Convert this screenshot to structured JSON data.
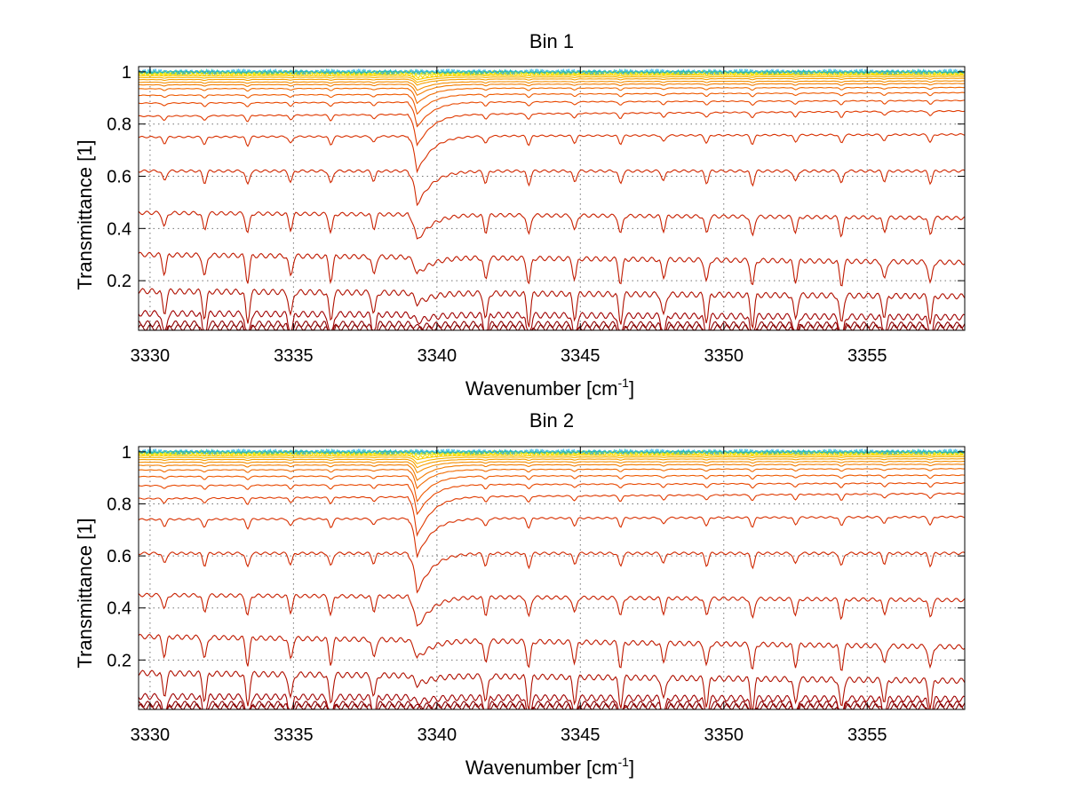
{
  "chart_data": [
    {
      "type": "line",
      "title": "Bin 1",
      "xlabel": "Wavenumber [cm",
      "xlabel_sup": "-1",
      "xlabel_close": "]",
      "ylabel": "Transmittance [1]",
      "xlim": [
        3329.6,
        3358.4
      ],
      "ylim": [
        0.01,
        1.02
      ],
      "x_ticks": [
        3330,
        3335,
        3340,
        3345,
        3350,
        3355
      ],
      "x_tick_labels": [
        "3330",
        "3335",
        "3340",
        "3345",
        "3350",
        "3355"
      ],
      "y_ticks": [
        0.2,
        0.4,
        0.6,
        0.8,
        1
      ],
      "y_tick_labels": [
        "0.2",
        "0.4",
        "0.6",
        "0.8",
        "1"
      ],
      "grid": true,
      "series_baselines": [
        0.02,
        0.035,
        0.075,
        0.16,
        0.3,
        0.46,
        0.62,
        0.75,
        0.83,
        0.88,
        0.91,
        0.935,
        0.95,
        0.96,
        0.97,
        0.978,
        0.985,
        0.99,
        0.995,
        0.998
      ],
      "series_end_values": [
        0.02,
        0.03,
        0.06,
        0.14,
        0.27,
        0.44,
        0.62,
        0.76,
        0.85,
        0.89,
        0.92,
        0.94,
        0.955,
        0.965,
        0.975,
        0.982,
        0.988,
        0.992,
        0.996,
        0.998
      ],
      "main_dip": {
        "x": 3339.3,
        "min_values": [
          0.012,
          0.02,
          0.04,
          0.11,
          0.22,
          0.35,
          0.49,
          0.62,
          0.72,
          0.79,
          0.84,
          0.88,
          0.91,
          0.93,
          0.95,
          0.96,
          0.97,
          0.98,
          0.99,
          0.995
        ]
      },
      "minor_dip_positions": [
        3330.5,
        3331.9,
        3333.4,
        3334.9,
        3336.3,
        3337.8,
        3341.7,
        3343.2,
        3344.8,
        3346.4,
        3347.9,
        3349.4,
        3351.0,
        3352.5,
        3354.1,
        3355.6,
        3357.2
      ]
    },
    {
      "type": "line",
      "title": "Bin 2",
      "xlabel": "Wavenumber [cm",
      "xlabel_sup": "-1",
      "xlabel_close": "]",
      "ylabel": "Transmittance [1]",
      "xlim": [
        3329.6,
        3358.4
      ],
      "ylim": [
        0.01,
        1.02
      ],
      "x_ticks": [
        3330,
        3335,
        3340,
        3345,
        3350,
        3355
      ],
      "x_tick_labels": [
        "3330",
        "3335",
        "3340",
        "3345",
        "3350",
        "3355"
      ],
      "y_ticks": [
        0.2,
        0.4,
        0.6,
        0.8,
        1
      ],
      "y_tick_labels": [
        "0.2",
        "0.4",
        "0.6",
        "0.8",
        "1"
      ],
      "grid": true,
      "series_baselines": [
        0.02,
        0.03,
        0.06,
        0.15,
        0.29,
        0.45,
        0.61,
        0.74,
        0.82,
        0.87,
        0.905,
        0.93,
        0.948,
        0.96,
        0.97,
        0.978,
        0.985,
        0.99,
        0.995,
        0.998
      ],
      "series_end_values": [
        0.02,
        0.03,
        0.05,
        0.12,
        0.25,
        0.43,
        0.61,
        0.75,
        0.84,
        0.88,
        0.91,
        0.935,
        0.952,
        0.963,
        0.973,
        0.981,
        0.987,
        0.992,
        0.996,
        0.998
      ],
      "main_dip": {
        "x": 3339.3,
        "min_values": [
          0.012,
          0.018,
          0.035,
          0.1,
          0.2,
          0.32,
          0.46,
          0.6,
          0.68,
          0.76,
          0.81,
          0.86,
          0.89,
          0.92,
          0.94,
          0.955,
          0.97,
          0.98,
          0.99,
          0.995
        ]
      },
      "minor_dip_positions": [
        3330.5,
        3331.9,
        3333.4,
        3334.9,
        3336.3,
        3337.8,
        3341.7,
        3343.2,
        3344.8,
        3346.4,
        3347.9,
        3349.4,
        3351.0,
        3352.5,
        3354.1,
        3355.6,
        3357.2
      ]
    }
  ]
}
